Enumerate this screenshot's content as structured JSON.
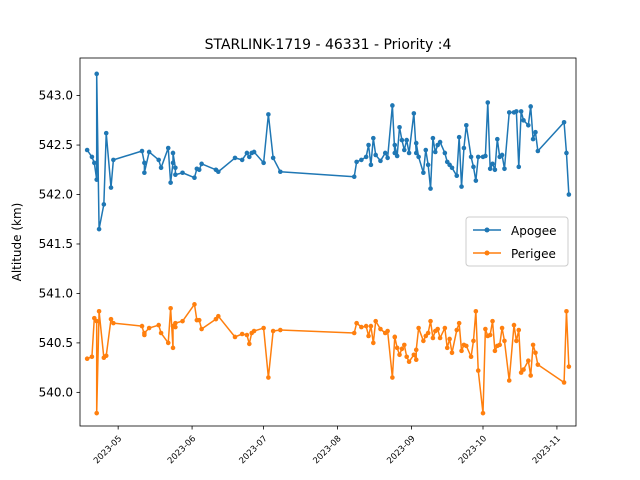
{
  "chart_data": {
    "type": "line",
    "title": "STARLINK-1719 - 46331 - Priority :4",
    "xlabel": "",
    "ylabel": "Altitude (km)",
    "x_tick_labels": [
      "2023-05",
      "2023-06",
      "2023-07",
      "2023-08",
      "2023-09",
      "2023-10",
      "2023-11"
    ],
    "y_ticks": [
      540.0,
      540.5,
      541.0,
      541.5,
      542.0,
      542.5,
      543.0
    ],
    "y_tick_labels": [
      "540.0",
      "540.5",
      "541.0",
      "541.5",
      "542.0",
      "542.5",
      "543.0"
    ],
    "xlim": [
      "2023-04-15",
      "2023-11-09"
    ],
    "ylim": [
      539.66,
      543.38
    ],
    "grid": false,
    "legend_position": "center-right",
    "series": [
      {
        "name": "Apogee",
        "color": "#1f77b4",
        "x": [
          "2023-04-18",
          "2023-04-20",
          "2023-04-21",
          "2023-04-22",
          "2023-04-22",
          "2023-04-23",
          "2023-04-25",
          "2023-04-26",
          "2023-04-28",
          "2023-04-29",
          "2023-05-11",
          "2023-05-12",
          "2023-05-12",
          "2023-05-14",
          "2023-05-18",
          "2023-05-19",
          "2023-05-22",
          "2023-05-23",
          "2023-05-24",
          "2023-05-24",
          "2023-05-25",
          "2023-05-25",
          "2023-05-28",
          "2023-06-02",
          "2023-06-03",
          "2023-06-04",
          "2023-06-05",
          "2023-06-11",
          "2023-06-12",
          "2023-06-19",
          "2023-06-22",
          "2023-06-24",
          "2023-06-25",
          "2023-06-26",
          "2023-06-27",
          "2023-07-01",
          "2023-07-03",
          "2023-07-05",
          "2023-07-08",
          "2023-08-08",
          "2023-08-09",
          "2023-08-11",
          "2023-08-13",
          "2023-08-14",
          "2023-08-15",
          "2023-08-16",
          "2023-08-17",
          "2023-08-19",
          "2023-08-21",
          "2023-08-22",
          "2023-08-24",
          "2023-08-25",
          "2023-08-25",
          "2023-08-26",
          "2023-08-27",
          "2023-08-28",
          "2023-08-29",
          "2023-08-30",
          "2023-08-31",
          "2023-09-02",
          "2023-09-03",
          "2023-09-03",
          "2023-09-04",
          "2023-09-06",
          "2023-09-07",
          "2023-09-08",
          "2023-09-09",
          "2023-09-10",
          "2023-09-11",
          "2023-09-12",
          "2023-09-13",
          "2023-09-15",
          "2023-09-16",
          "2023-09-17",
          "2023-09-18",
          "2023-09-20",
          "2023-09-21",
          "2023-09-22",
          "2023-09-23",
          "2023-09-24",
          "2023-09-26",
          "2023-09-27",
          "2023-09-28",
          "2023-09-29",
          "2023-10-01",
          "2023-10-02",
          "2023-10-03",
          "2023-10-04",
          "2023-10-05",
          "2023-10-06",
          "2023-10-07",
          "2023-10-08",
          "2023-10-09",
          "2023-10-10",
          "2023-10-12",
          "2023-10-14",
          "2023-10-15",
          "2023-10-16",
          "2023-10-17",
          "2023-10-18",
          "2023-10-20",
          "2023-10-21",
          "2023-10-22",
          "2023-10-23",
          "2023-10-24",
          "2023-11-04",
          "2023-11-05",
          "2023-11-06"
        ],
        "values": [
          542.45,
          542.38,
          542.32,
          542.15,
          543.22,
          541.65,
          541.9,
          542.62,
          542.07,
          542.35,
          542.44,
          542.32,
          542.22,
          542.43,
          542.35,
          542.27,
          542.47,
          542.12,
          542.32,
          542.42,
          542.27,
          542.2,
          542.22,
          542.17,
          542.26,
          542.25,
          542.31,
          542.25,
          542.23,
          542.37,
          542.35,
          542.42,
          542.38,
          542.42,
          542.43,
          542.32,
          542.81,
          542.37,
          542.23,
          542.18,
          542.33,
          542.35,
          542.38,
          542.5,
          542.3,
          542.57,
          542.4,
          542.34,
          542.42,
          542.37,
          542.9,
          542.42,
          542.5,
          542.39,
          542.68,
          542.55,
          542.45,
          542.55,
          542.42,
          542.82,
          542.42,
          542.52,
          542.38,
          542.22,
          542.45,
          542.3,
          542.06,
          542.57,
          542.43,
          542.5,
          542.53,
          542.42,
          542.33,
          542.3,
          542.27,
          542.19,
          542.58,
          542.08,
          542.47,
          542.7,
          542.38,
          542.28,
          542.14,
          542.38,
          542.38,
          542.39,
          542.93,
          542.26,
          542.31,
          542.25,
          542.56,
          542.38,
          542.4,
          542.26,
          542.83,
          542.83,
          542.84,
          542.28,
          542.84,
          542.75,
          542.7,
          542.89,
          542.56,
          542.63,
          542.44,
          542.73,
          542.42,
          542.0
        ]
      },
      {
        "name": "Perigee",
        "color": "#ff7f0e",
        "x": [
          "2023-04-18",
          "2023-04-20",
          "2023-04-21",
          "2023-04-22",
          "2023-04-22",
          "2023-04-23",
          "2023-04-25",
          "2023-04-26",
          "2023-04-28",
          "2023-04-29",
          "2023-05-11",
          "2023-05-12",
          "2023-05-12",
          "2023-05-14",
          "2023-05-18",
          "2023-05-19",
          "2023-05-22",
          "2023-05-23",
          "2023-05-24",
          "2023-05-24",
          "2023-05-25",
          "2023-05-25",
          "2023-05-28",
          "2023-06-02",
          "2023-06-03",
          "2023-06-04",
          "2023-06-05",
          "2023-06-11",
          "2023-06-12",
          "2023-06-19",
          "2023-06-22",
          "2023-06-24",
          "2023-06-25",
          "2023-06-26",
          "2023-06-27",
          "2023-07-01",
          "2023-07-03",
          "2023-07-05",
          "2023-07-08",
          "2023-08-08",
          "2023-08-09",
          "2023-08-11",
          "2023-08-13",
          "2023-08-14",
          "2023-08-15",
          "2023-08-16",
          "2023-08-17",
          "2023-08-19",
          "2023-08-21",
          "2023-08-22",
          "2023-08-24",
          "2023-08-25",
          "2023-08-25",
          "2023-08-26",
          "2023-08-27",
          "2023-08-28",
          "2023-08-29",
          "2023-08-30",
          "2023-08-31",
          "2023-09-02",
          "2023-09-03",
          "2023-09-03",
          "2023-09-04",
          "2023-09-06",
          "2023-09-07",
          "2023-09-08",
          "2023-09-09",
          "2023-09-10",
          "2023-09-11",
          "2023-09-12",
          "2023-09-13",
          "2023-09-15",
          "2023-09-16",
          "2023-09-17",
          "2023-09-18",
          "2023-09-20",
          "2023-09-21",
          "2023-09-22",
          "2023-09-23",
          "2023-09-24",
          "2023-09-26",
          "2023-09-27",
          "2023-09-28",
          "2023-09-29",
          "2023-10-01",
          "2023-10-02",
          "2023-10-03",
          "2023-10-04",
          "2023-10-05",
          "2023-10-06",
          "2023-10-07",
          "2023-10-08",
          "2023-10-09",
          "2023-10-10",
          "2023-10-12",
          "2023-10-14",
          "2023-10-15",
          "2023-10-16",
          "2023-10-17",
          "2023-10-18",
          "2023-10-20",
          "2023-10-21",
          "2023-10-22",
          "2023-10-23",
          "2023-10-24",
          "2023-11-04",
          "2023-11-05",
          "2023-11-06"
        ],
        "values": [
          540.34,
          540.36,
          540.75,
          540.72,
          539.79,
          540.82,
          540.35,
          540.37,
          540.74,
          540.7,
          540.67,
          540.58,
          540.6,
          540.65,
          540.68,
          540.6,
          540.5,
          540.85,
          540.45,
          540.67,
          540.66,
          540.7,
          540.72,
          540.89,
          540.73,
          540.73,
          540.64,
          540.74,
          540.77,
          540.56,
          540.59,
          540.58,
          540.49,
          540.6,
          540.62,
          540.65,
          540.15,
          540.62,
          540.63,
          540.6,
          540.7,
          540.66,
          540.67,
          540.57,
          540.67,
          540.5,
          540.72,
          540.64,
          540.6,
          540.62,
          540.15,
          540.56,
          540.56,
          540.45,
          540.38,
          540.44,
          540.48,
          540.36,
          540.31,
          540.38,
          540.33,
          540.43,
          540.65,
          540.52,
          540.57,
          540.6,
          540.72,
          540.55,
          540.62,
          540.64,
          540.55,
          540.65,
          540.45,
          540.54,
          540.4,
          540.63,
          540.7,
          540.42,
          540.48,
          540.47,
          540.36,
          540.52,
          540.82,
          540.22,
          539.79,
          540.64,
          540.57,
          540.58,
          540.72,
          540.42,
          540.47,
          540.48,
          540.65,
          540.52,
          540.12,
          540.68,
          540.52,
          540.63,
          540.2,
          540.23,
          540.32,
          540.17,
          540.48,
          540.4,
          540.28,
          540.1,
          540.82,
          540.26
        ]
      }
    ]
  }
}
